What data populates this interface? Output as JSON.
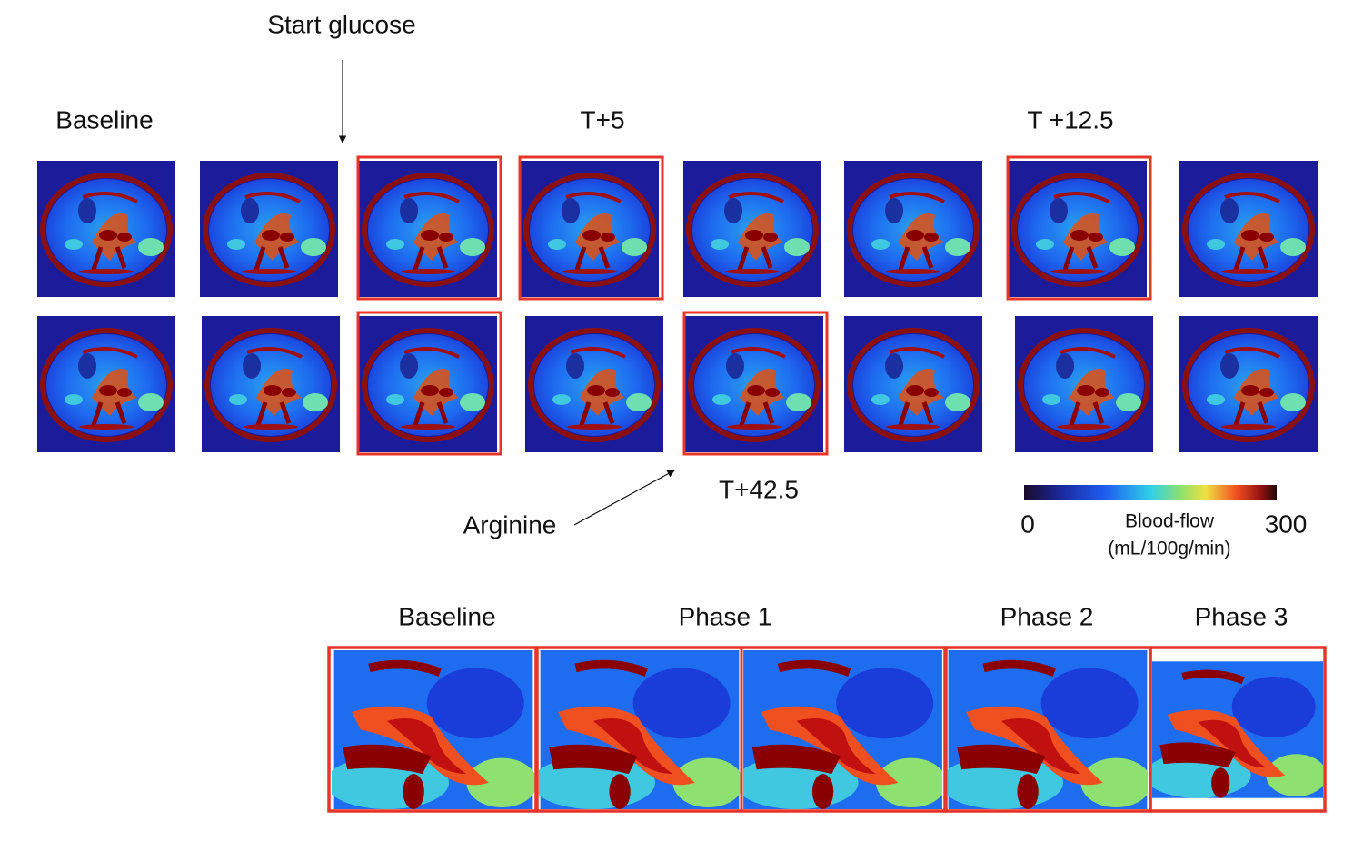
{
  "annotations": {
    "start": "Start glucose",
    "arginine": "Arginine"
  },
  "time_labels": [
    "Baseline",
    "T+5",
    "T +12.5",
    "T+42.5"
  ],
  "colorbar": {
    "min": 0,
    "max": 300,
    "label": "Blood-flow",
    "unit": "(mL/100g/min)"
  },
  "phase_labels": [
    "Baseline",
    "Phase 1",
    "Phase 2",
    "Phase 3"
  ]
}
